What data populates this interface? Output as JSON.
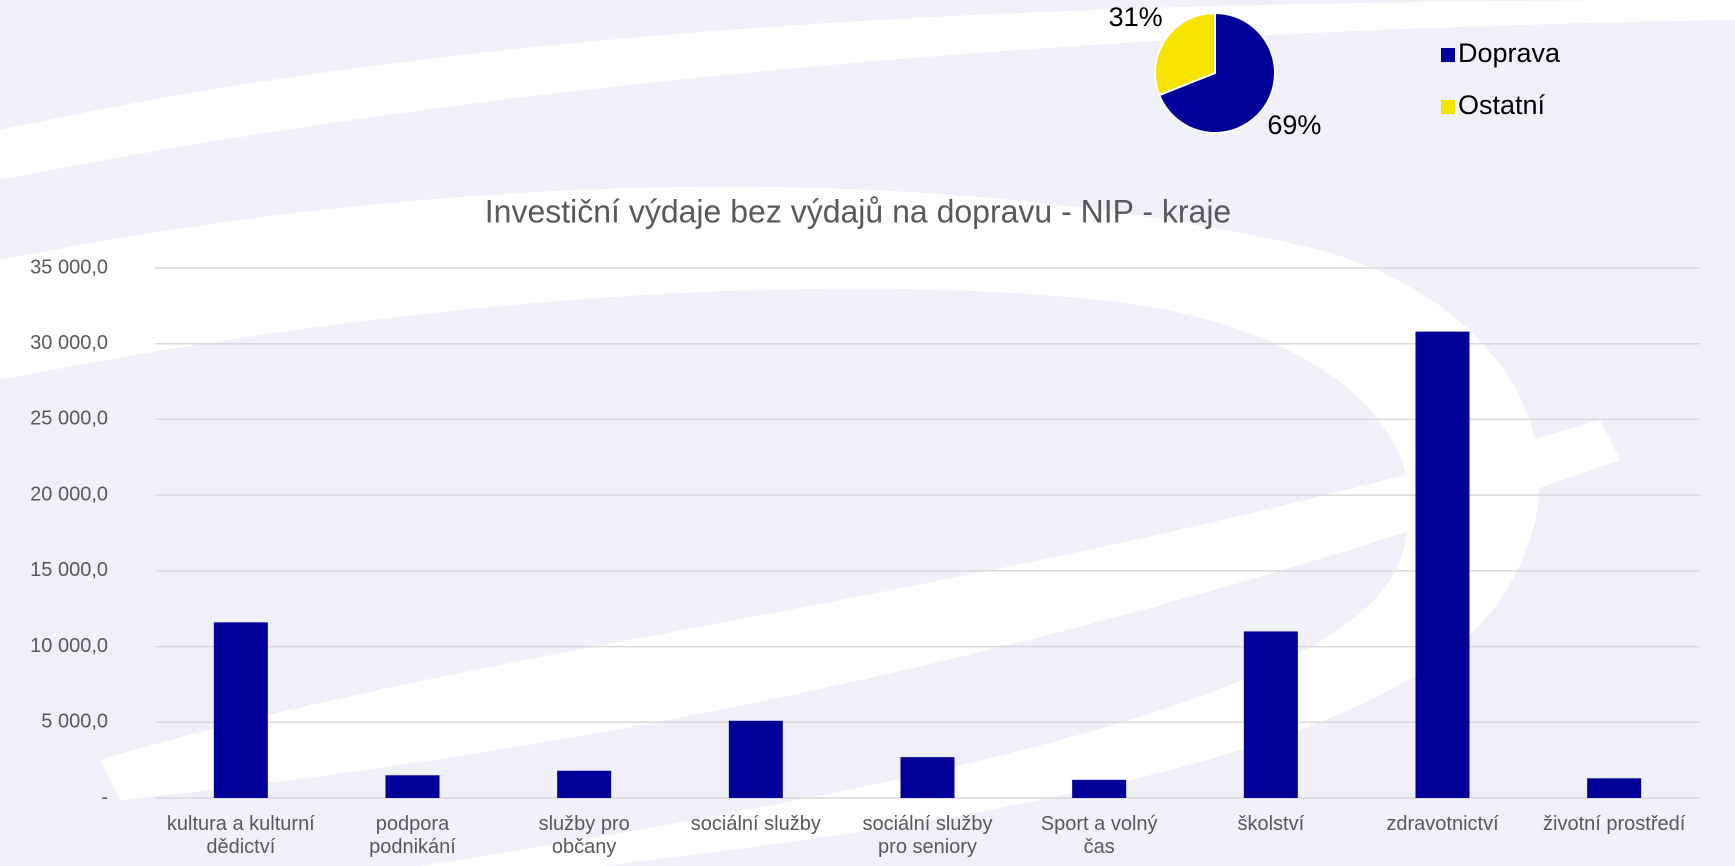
{
  "chart_data": [
    {
      "type": "pie",
      "categories": [
        "Doprava",
        "Ostatní"
      ],
      "values": [
        69,
        31
      ],
      "value_labels": [
        "69%",
        "31%"
      ],
      "colors": [
        "#000099",
        "#f7e300"
      ],
      "legend": "right"
    },
    {
      "type": "bar",
      "title": "Investiční výdaje bez výdajů na dopravu - NIP - kraje",
      "categories": [
        "kultura a kulturní dědictví",
        "podpora podnikání",
        "služby pro občany",
        "sociální služby",
        "sociální služby pro seniory",
        "Sport a volný čas",
        "školství",
        "zdravotnictví",
        "životní prostředí"
      ],
      "values": [
        11600,
        1500,
        1800,
        5100,
        2700,
        1200,
        11000,
        30800,
        1300
      ],
      "color": "#000099",
      "ylim": [
        0,
        35000
      ],
      "yticks": [
        {
          "value": 0,
          "label": "-"
        },
        {
          "value": 5000,
          "label": "5 000,0"
        },
        {
          "value": 10000,
          "label": "10 000,0"
        },
        {
          "value": 15000,
          "label": "15 000,0"
        },
        {
          "value": 20000,
          "label": "20 000,0"
        },
        {
          "value": 25000,
          "label": "25 000,0"
        },
        {
          "value": 30000,
          "label": "30 000,0"
        },
        {
          "value": 35000,
          "label": "35 000,0"
        }
      ],
      "grid": true
    }
  ]
}
